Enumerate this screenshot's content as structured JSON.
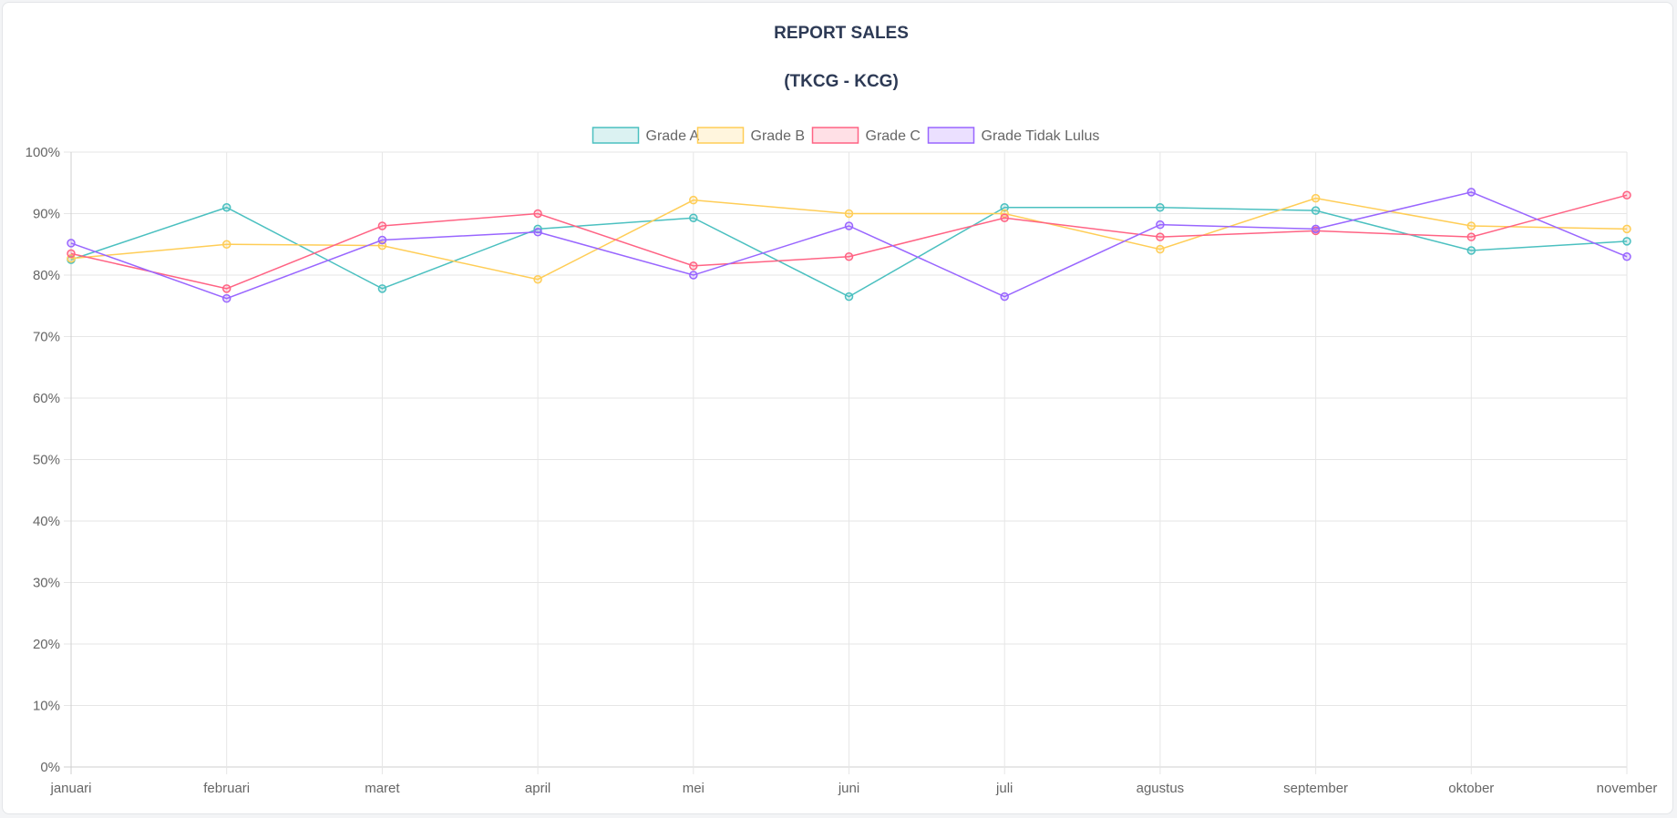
{
  "chart_data": {
    "type": "line",
    "title": "REPORT SALES",
    "subtitle": "(TKCG - KCG)",
    "x": [
      "januari",
      "februari",
      "maret",
      "april",
      "mei",
      "juni",
      "juli",
      "agustus",
      "september",
      "oktober",
      "november"
    ],
    "y_ticks": [
      "0%",
      "10%",
      "20%",
      "30%",
      "40%",
      "50%",
      "60%",
      "70%",
      "80%",
      "90%",
      "100%"
    ],
    "ylim": [
      0,
      100
    ],
    "grid": true,
    "legend": "top-center",
    "series": [
      {
        "name": "Grade A",
        "color": "#4bc0c0",
        "fill": "rgba(75,192,192,0.2)",
        "values": [
          82.5,
          91.0,
          77.8,
          87.5,
          89.3,
          76.5,
          91.0,
          91.0,
          90.5,
          84.0,
          85.5
        ]
      },
      {
        "name": "Grade B",
        "color": "#ffcd56",
        "fill": "rgba(255,205,86,0.2)",
        "values": [
          82.7,
          85.0,
          84.8,
          79.3,
          92.2,
          90.0,
          90.0,
          84.2,
          92.5,
          88.0,
          87.5
        ]
      },
      {
        "name": "Grade C",
        "color": "#ff6384",
        "fill": "rgba(255,99,132,0.2)",
        "values": [
          83.5,
          77.8,
          88.0,
          90.0,
          81.5,
          83.0,
          89.3,
          86.2,
          87.2,
          86.2,
          93.0
        ]
      },
      {
        "name": "Grade Tidak Lulus",
        "color": "#9966ff",
        "fill": "rgba(153,102,255,0.2)",
        "values": [
          85.2,
          76.2,
          85.7,
          87.0,
          80.0,
          88.0,
          76.5,
          88.2,
          87.5,
          93.5,
          83.0
        ]
      }
    ]
  }
}
